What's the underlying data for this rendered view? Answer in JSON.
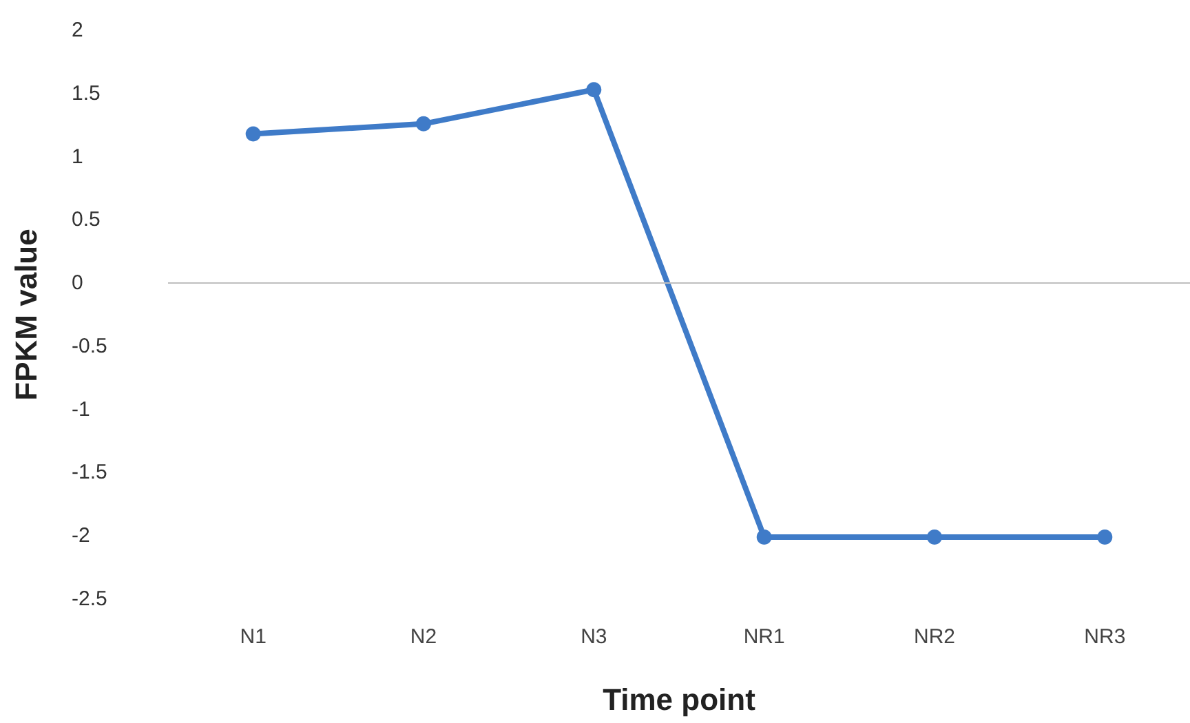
{
  "chart_data": {
    "type": "line",
    "xlabel": "Time point",
    "ylabel": "FPKM value",
    "categories": [
      "N1",
      "N2",
      "N3",
      "NR1",
      "NR2",
      "NR3"
    ],
    "series": [
      {
        "color": "#3f7bc8",
        "values": [
          1.18,
          1.26,
          1.53,
          -2.01,
          -2.01,
          -2.01
        ]
      }
    ],
    "ylim": [
      -2.5,
      2
    ],
    "yticks": [
      -2.5,
      -2,
      -1.5,
      -1,
      -0.5,
      0,
      0.5,
      1,
      1.5,
      2
    ],
    "ref_lines": [
      {
        "axis": "y",
        "value": 0,
        "color": "#bfbfbf"
      }
    ],
    "grid": false,
    "marker": "circle",
    "line_style": "solid"
  }
}
